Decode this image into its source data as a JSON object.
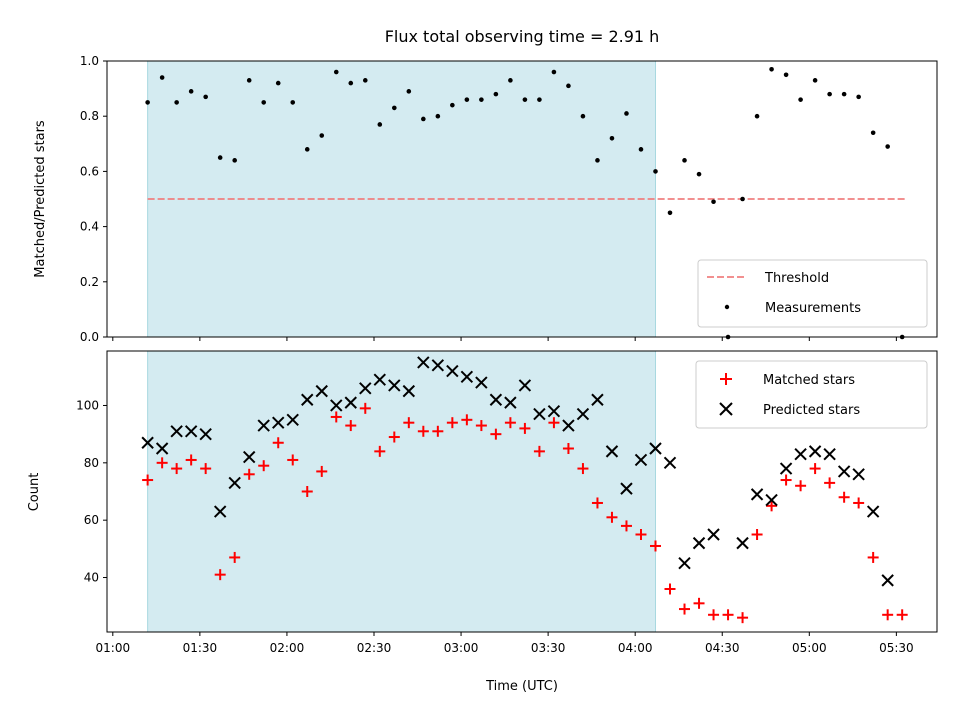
{
  "chart_data": {
    "title": "Flux total observing time = 2.91 h",
    "xlabel": "Time (UTC)",
    "x_ticks": [
      "01:00",
      "01:30",
      "02:00",
      "02:30",
      "03:00",
      "03:30",
      "04:00",
      "04:30",
      "05:00",
      "05:30"
    ],
    "x_tick_minutes": [
      60,
      90,
      120,
      150,
      180,
      210,
      240,
      270,
      300,
      330
    ],
    "xlim_minutes": [
      58,
      344
    ],
    "shaded_span_minutes": [
      72,
      247
    ],
    "colors": {
      "span": "#d4ebf1",
      "span_edge": "#a8d8e0",
      "threshold": "#f08080",
      "matched": "#ff0000",
      "predicted": "#000000",
      "measurements": "#000000"
    },
    "panels": [
      {
        "type": "scatter",
        "ylabel": "Matched/Predicted stars",
        "ylim": [
          0,
          1.0
        ],
        "y_ticks": [
          "0.0",
          "0.2",
          "0.4",
          "0.6",
          "0.8",
          "1.0"
        ],
        "y_tick_values": [
          0,
          0.2,
          0.4,
          0.6,
          0.8,
          1.0
        ],
        "legend": {
          "placement": "lower-right",
          "entries": [
            "Threshold",
            "Measurements"
          ]
        },
        "threshold": {
          "name": "Threshold",
          "value": 0.5,
          "x_range_minutes": [
            72,
            333
          ]
        },
        "series": [
          {
            "name": "Measurements",
            "x": [
              72,
              77,
              82,
              87,
              92,
              97,
              102,
              107,
              112,
              117,
              122,
              127,
              132,
              137,
              142,
              147,
              152,
              157,
              162,
              167,
              172,
              177,
              182,
              187,
              192,
              197,
              202,
              207,
              212,
              217,
              222,
              227,
              232,
              237,
              242,
              247,
              252,
              257,
              262,
              267,
              272,
              277,
              282,
              287,
              292,
              297,
              302,
              307,
              312,
              317,
              322,
              327,
              332
            ],
            "y": [
              0.85,
              0.94,
              0.85,
              0.89,
              0.87,
              0.65,
              0.64,
              0.93,
              0.85,
              0.92,
              0.85,
              0.68,
              0.73,
              0.96,
              0.92,
              0.93,
              0.77,
              0.83,
              0.89,
              0.79,
              0.8,
              0.84,
              0.86,
              0.86,
              0.88,
              0.93,
              0.86,
              0.86,
              0.96,
              0.91,
              0.8,
              0.64,
              0.72,
              0.81,
              0.68,
              0.6,
              0.45,
              0.64,
              0.59,
              0.49,
              0.0,
              0.5,
              0.8,
              0.97,
              0.95,
              0.86,
              0.93,
              0.88,
              0.88,
              0.87,
              0.74,
              0.69,
              0.0
            ]
          }
        ]
      },
      {
        "type": "scatter",
        "ylabel": "Count",
        "ylim": [
          21,
          119
        ],
        "y_ticks": [
          "40",
          "60",
          "80",
          "100"
        ],
        "y_tick_values": [
          40,
          60,
          80,
          100
        ],
        "legend": {
          "placement": "upper-right",
          "entries": [
            "Matched stars",
            "Predicted stars"
          ]
        },
        "series": [
          {
            "name": "Matched stars",
            "marker": "plus",
            "x": [
              72,
              77,
              82,
              87,
              92,
              97,
              102,
              107,
              112,
              117,
              122,
              127,
              132,
              137,
              142,
              147,
              152,
              157,
              162,
              167,
              172,
              177,
              182,
              187,
              192,
              197,
              202,
              207,
              212,
              217,
              222,
              227,
              232,
              237,
              242,
              247,
              252,
              257,
              262,
              267,
              272,
              277,
              282,
              287,
              292,
              297,
              302,
              307,
              312,
              317,
              322,
              327,
              332
            ],
            "y": [
              74,
              80,
              78,
              81,
              78,
              41,
              47,
              76,
              79,
              87,
              81,
              70,
              77,
              96,
              93,
              99,
              84,
              89,
              94,
              91,
              91,
              94,
              95,
              93,
              90,
              94,
              92,
              84,
              94,
              85,
              78,
              66,
              61,
              58,
              55,
              51,
              36,
              29,
              31,
              27,
              27,
              26,
              55,
              65,
              74,
              72,
              78,
              73,
              68,
              66,
              47,
              27,
              27
            ]
          },
          {
            "name": "Predicted stars",
            "marker": "x",
            "x": [
              72,
              77,
              82,
              87,
              92,
              97,
              102,
              107,
              112,
              117,
              122,
              127,
              132,
              137,
              142,
              147,
              152,
              157,
              162,
              167,
              172,
              177,
              182,
              187,
              192,
              197,
              202,
              207,
              212,
              217,
              222,
              227,
              232,
              237,
              242,
              247,
              252,
              257,
              262,
              267,
              277,
              282,
              287,
              292,
              297,
              302,
              307,
              312,
              317,
              322,
              327
            ],
            "y": [
              87,
              85,
              91,
              91,
              90,
              63,
              73,
              82,
              93,
              94,
              95,
              102,
              105,
              100,
              101,
              106,
              109,
              107,
              105,
              115,
              114,
              112,
              110,
              108,
              102,
              101,
              107,
              97,
              98,
              93,
              97,
              102,
              84,
              71,
              81,
              85,
              80,
              45,
              52,
              55,
              52,
              69,
              67,
              78,
              83,
              84,
              83,
              77,
              76,
              63,
              39
            ]
          }
        ]
      }
    ]
  }
}
